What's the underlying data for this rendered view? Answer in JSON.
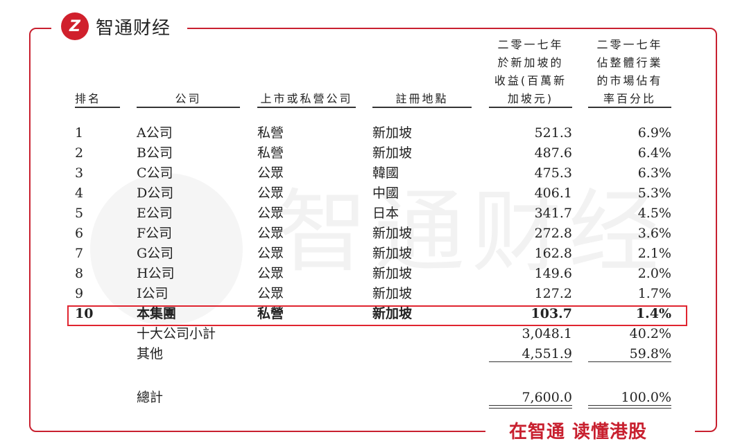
{
  "brand": {
    "logo_mark": "Z",
    "name": "智通财经",
    "slogan": "在智通 读懂港股",
    "watermark": "智通财经",
    "accent": "#c8202f"
  },
  "headers": {
    "rank": "排名",
    "company": "公司",
    "listed": "上市或私營公司",
    "location": "註冊地點",
    "revenue": [
      "二零一七年",
      "於新加坡的",
      "收益(百萬新",
      "加坡元)"
    ],
    "share": [
      "二零一七年",
      "佔整體行業",
      "的市場佔有",
      "率百分比"
    ]
  },
  "rows": [
    {
      "rank": "1",
      "company": "A公司",
      "listed": "私營",
      "location": "新加坡",
      "revenue": "521.3",
      "share": "6.9%"
    },
    {
      "rank": "2",
      "company": "B公司",
      "listed": "私營",
      "location": "新加坡",
      "revenue": "487.6",
      "share": "6.4%"
    },
    {
      "rank": "3",
      "company": "C公司",
      "listed": "公眾",
      "location": "韓國",
      "revenue": "475.3",
      "share": "6.3%"
    },
    {
      "rank": "4",
      "company": "D公司",
      "listed": "公眾",
      "location": "中國",
      "revenue": "406.1",
      "share": "5.3%"
    },
    {
      "rank": "5",
      "company": "E公司",
      "listed": "公眾",
      "location": "日本",
      "revenue": "341.7",
      "share": "4.5%"
    },
    {
      "rank": "6",
      "company": "F公司",
      "listed": "公眾",
      "location": "新加坡",
      "revenue": "272.8",
      "share": "3.6%"
    },
    {
      "rank": "7",
      "company": "G公司",
      "listed": "公眾",
      "location": "新加坡",
      "revenue": "162.8",
      "share": "2.1%"
    },
    {
      "rank": "8",
      "company": "H公司",
      "listed": "公眾",
      "location": "新加坡",
      "revenue": "149.6",
      "share": "2.0%"
    },
    {
      "rank": "9",
      "company": "I公司",
      "listed": "公眾",
      "location": "新加坡",
      "revenue": "127.2",
      "share": "1.7%"
    },
    {
      "rank": "10",
      "company": "本集團",
      "listed": "私營",
      "location": "新加坡",
      "revenue": "103.7",
      "share": "1.4%",
      "highlight": true
    }
  ],
  "summary": [
    {
      "label": "十大公司小計",
      "revenue": "3,048.1",
      "share": "40.2%"
    },
    {
      "label": "其他",
      "revenue": "4,551.9",
      "share": "59.8%"
    },
    {
      "label": "總計",
      "revenue": "7,600.0",
      "share": "100.0%"
    }
  ]
}
